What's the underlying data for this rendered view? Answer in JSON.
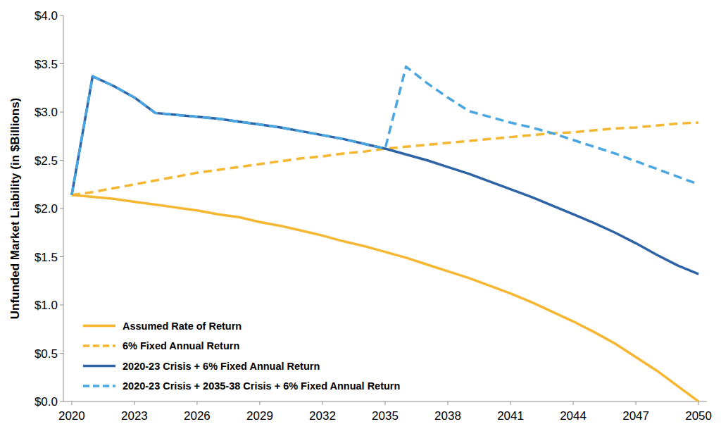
{
  "chart_data": {
    "type": "line",
    "y_label": "Unfunded Market Liability (in $Billions)",
    "x": [
      2020,
      2021,
      2022,
      2023,
      2024,
      2025,
      2026,
      2027,
      2028,
      2029,
      2030,
      2031,
      2032,
      2033,
      2034,
      2035,
      2036,
      2037,
      2038,
      2039,
      2040,
      2041,
      2042,
      2043,
      2044,
      2045,
      2046,
      2047,
      2048,
      2049,
      2050
    ],
    "series": [
      {
        "name": "Assumed Rate of Return",
        "color": "#F5B731",
        "line_style": "solid",
        "values": [
          2.14,
          2.12,
          2.1,
          2.07,
          2.04,
          2.01,
          1.98,
          1.94,
          1.91,
          1.86,
          1.82,
          1.77,
          1.72,
          1.66,
          1.61,
          1.55,
          1.49,
          1.42,
          1.35,
          1.28,
          1.2,
          1.12,
          1.03,
          0.93,
          0.83,
          0.72,
          0.6,
          0.46,
          0.32,
          0.16,
          0.0
        ]
      },
      {
        "name": "6% Fixed Annual Return",
        "color": "#F5B731",
        "line_style": "dashed",
        "values": [
          2.14,
          2.17,
          2.21,
          2.25,
          2.29,
          2.33,
          2.37,
          2.4,
          2.43,
          2.46,
          2.49,
          2.52,
          2.54,
          2.57,
          2.59,
          2.62,
          2.64,
          2.66,
          2.68,
          2.7,
          2.72,
          2.74,
          2.76,
          2.78,
          2.79,
          2.81,
          2.83,
          2.84,
          2.86,
          2.88,
          2.89
        ]
      },
      {
        "name": "2020-23 Crisis + 6% Fixed Annual Return",
        "color": "#2E63A6",
        "line_style": "solid",
        "values": [
          2.14,
          3.37,
          3.27,
          3.15,
          2.99,
          2.97,
          2.95,
          2.93,
          2.9,
          2.87,
          2.84,
          2.8,
          2.76,
          2.72,
          2.67,
          2.62,
          2.56,
          2.5,
          2.43,
          2.36,
          2.28,
          2.2,
          2.12,
          2.03,
          1.94,
          1.85,
          1.75,
          1.64,
          1.52,
          1.41,
          1.32
        ]
      },
      {
        "name": "2020-23 Crisis + 2035-38 Crisis + 6% Fixed Annual Return",
        "color": "#4AA6E0",
        "line_style": "dashed",
        "values": [
          2.14,
          3.37,
          3.27,
          3.15,
          2.99,
          2.97,
          2.95,
          2.93,
          2.9,
          2.87,
          2.84,
          2.8,
          2.76,
          2.72,
          2.67,
          2.62,
          3.47,
          3.3,
          3.15,
          3.01,
          2.95,
          2.89,
          2.84,
          2.78,
          2.71,
          2.64,
          2.57,
          2.49,
          2.41,
          2.33,
          2.25
        ]
      }
    ],
    "xlim": [
      2019.6,
      2050.4
    ],
    "xticks": [
      2020,
      2023,
      2026,
      2029,
      2032,
      2035,
      2038,
      2041,
      2044,
      2047,
      2050
    ],
    "ylim": [
      0,
      4
    ],
    "yticks": [
      {
        "value": 0,
        "label": "$0.0"
      },
      {
        "value": 0.5,
        "label": "$0.5"
      },
      {
        "value": 1,
        "label": "$1.0"
      },
      {
        "value": 1.5,
        "label": "$1.5"
      },
      {
        "value": 2,
        "label": "$2.0"
      },
      {
        "value": 2.5,
        "label": "$2.5"
      },
      {
        "value": 3,
        "label": "$3.0"
      },
      {
        "value": 3.5,
        "label": "$3.5"
      },
      {
        "value": 4,
        "label": "$4.0"
      }
    ],
    "grid": false,
    "legend": "lower left"
  }
}
